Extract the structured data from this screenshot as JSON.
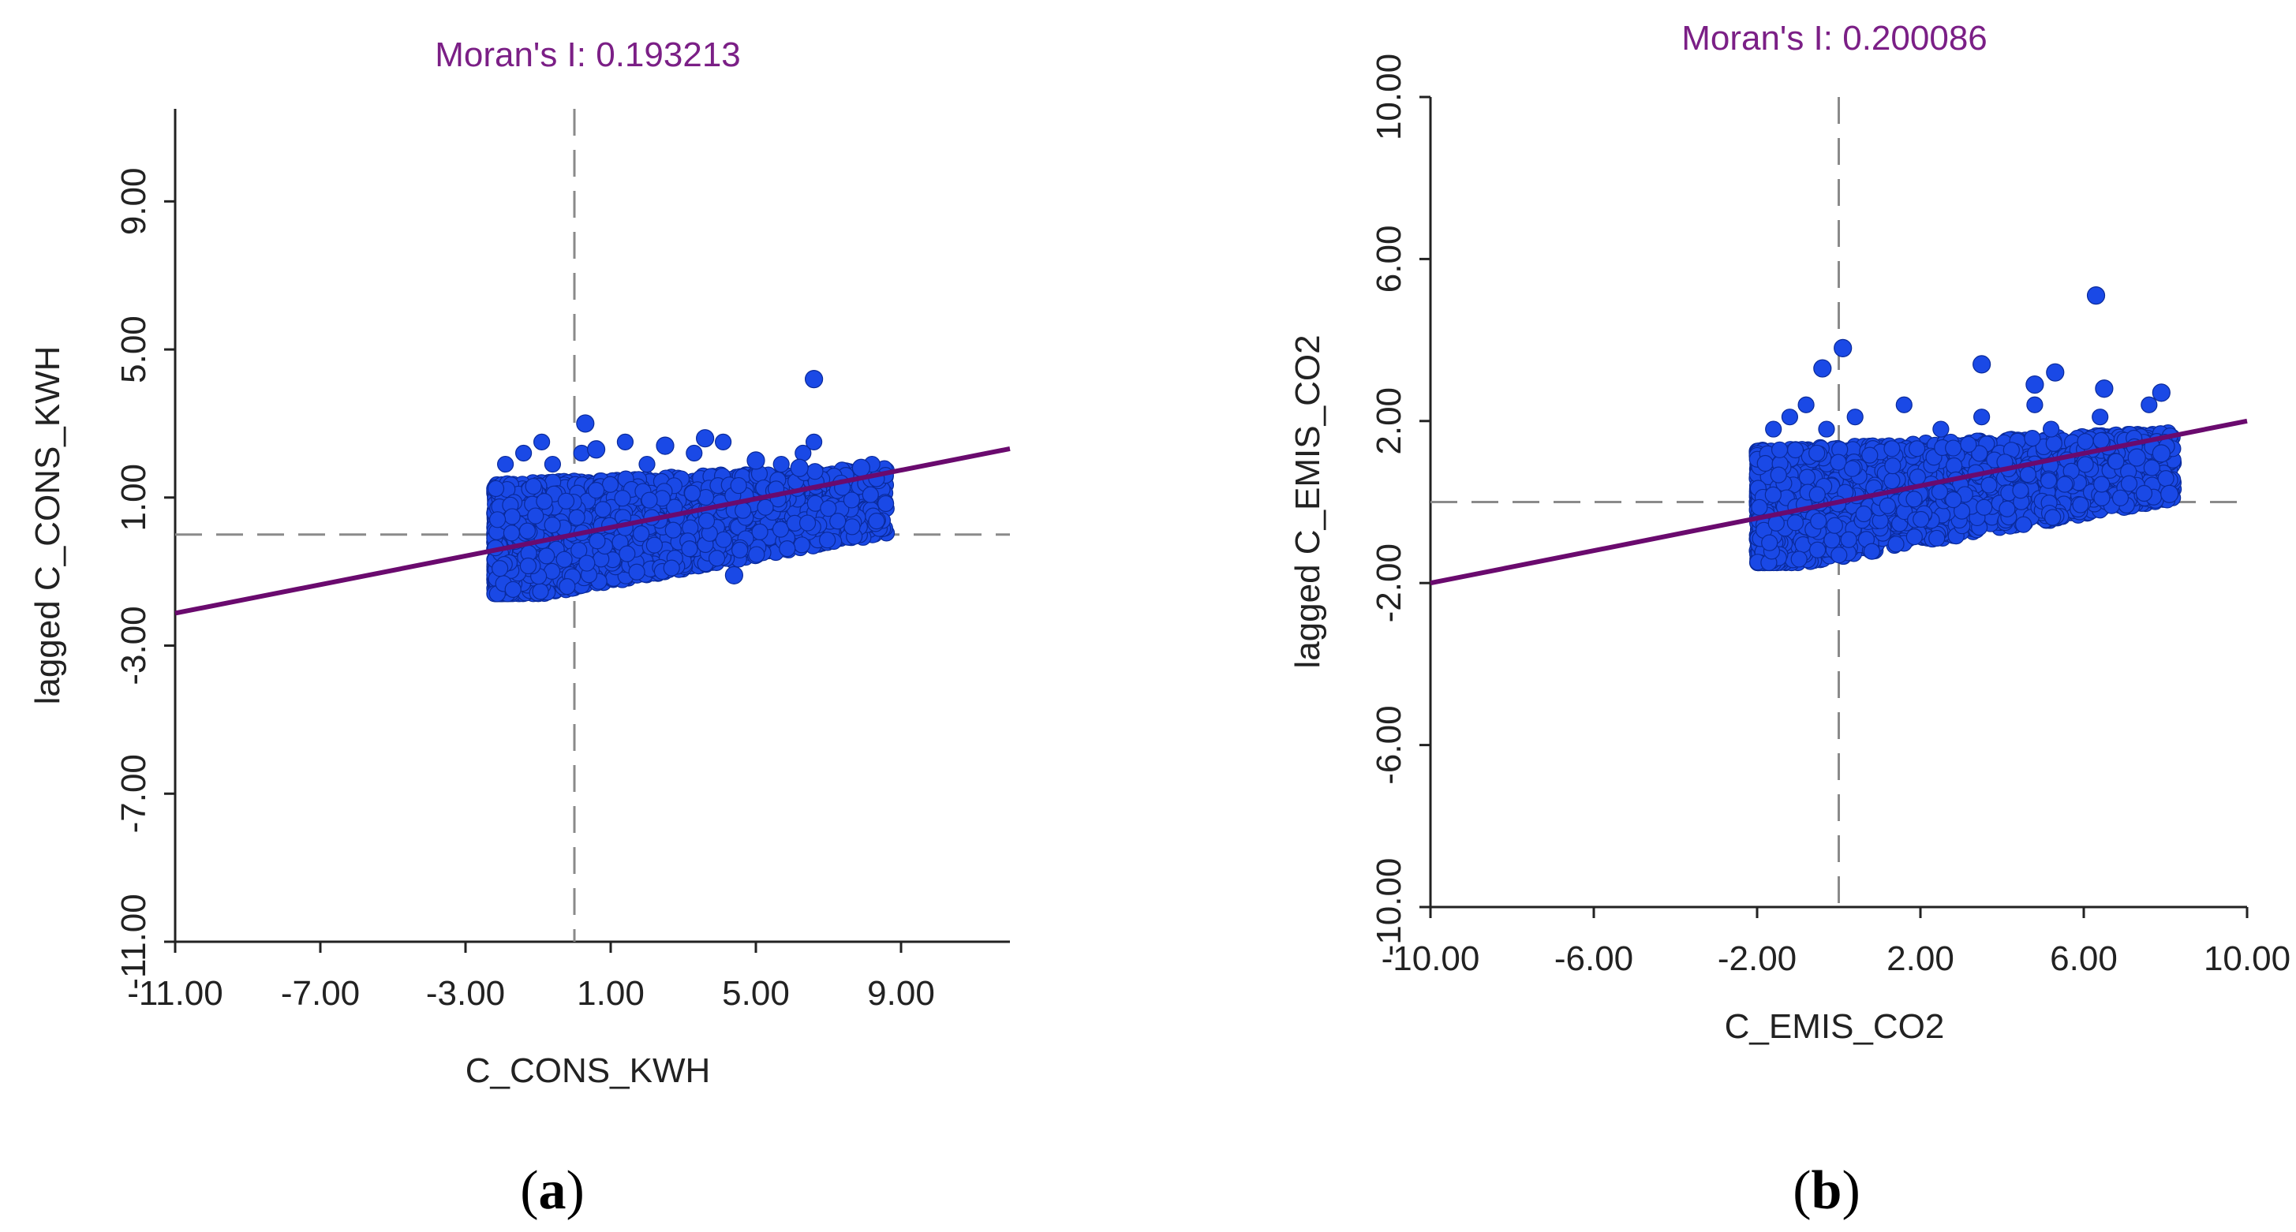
{
  "figure": {
    "panel_labels": [
      {
        "open": "(",
        "letter": "a",
        "close": ")"
      },
      {
        "open": "(",
        "letter": "b",
        "close": ")"
      }
    ]
  },
  "colors": {
    "points": "#1a49e6",
    "points_edge": "#0a2a9a",
    "regression": "#6a0a6e",
    "title": "#7b1f86",
    "axis": "#222222",
    "reference": "#8a8a8a"
  },
  "chart_data": [
    {
      "type": "scatter",
      "title": "Moran's I: 0.193213",
      "xlabel": "C_CONS_KWH",
      "ylabel": "lagged C_CONS_KWH",
      "xlim": [
        -11,
        12
      ],
      "ylim": [
        -11,
        11.5
      ],
      "xticks": [
        -11,
        -7,
        -3,
        1,
        5,
        9
      ],
      "yticks": [
        -11,
        -7,
        -3,
        1,
        5,
        9
      ],
      "xtick_labels": [
        "-11.00",
        "-7.00",
        "-3.00",
        "1.00",
        "5.00",
        "9.00"
      ],
      "ytick_labels": [
        "-11.00",
        "-7.00",
        "-3.00",
        "1.00",
        "5.00",
        "9.00"
      ],
      "reference_lines": {
        "x": 0,
        "y": 0
      },
      "regression": {
        "slope": 0.193213,
        "intercept": 0,
        "x_range": [
          -11,
          12
        ]
      },
      "point_cloud": {
        "n_points": 2600,
        "x_range": [
          -2.2,
          8.6
        ],
        "y_range": [
          -1.6,
          1.6
        ],
        "x_outliers": [
          -1.9,
          -1.4,
          -0.9,
          -0.6,
          0.2,
          1.4,
          2.0,
          3.3,
          4.1,
          5.7,
          6.3,
          6.6,
          8.2
        ],
        "highlight_points": [
          {
            "x": 6.6,
            "y": 4.2
          },
          {
            "x": 0.3,
            "y": 3.0
          },
          {
            "x": 3.6,
            "y": 2.6
          },
          {
            "x": 6.2,
            "y": 1.8
          },
          {
            "x": 7.9,
            "y": 1.8
          },
          {
            "x": 0.6,
            "y": 2.3
          },
          {
            "x": 2.5,
            "y": 2.4
          },
          {
            "x": 5.0,
            "y": 2.0
          },
          {
            "x": 4.4,
            "y": -1.1
          }
        ]
      }
    },
    {
      "type": "scatter",
      "title": "Moran's I: 0.200086",
      "xlabel": "C_EMIS_CO2",
      "ylabel": "lagged C_EMIS_CO2",
      "xlim": [
        -10,
        10
      ],
      "ylim": [
        -10,
        10
      ],
      "xticks": [
        -10,
        -6,
        -2,
        2,
        6,
        10
      ],
      "yticks": [
        -10,
        -6,
        -2,
        2,
        6,
        10
      ],
      "xtick_labels": [
        "-10.00",
        "-6.00",
        "-2.00",
        "2.00",
        "6.00",
        "10.00"
      ],
      "ytick_labels": [
        "-10.00",
        "-6.00",
        "-2.00",
        "2.00",
        "6.00",
        "10.00"
      ],
      "reference_lines": {
        "x": 0,
        "y": 0
      },
      "regression": {
        "slope": 0.200086,
        "intercept": 0,
        "x_range": [
          -10,
          10
        ]
      },
      "point_cloud": {
        "n_points": 2600,
        "x_range": [
          -2.0,
          8.2
        ],
        "y_range": [
          -1.5,
          1.5
        ],
        "x_outliers": [
          -1.6,
          -1.2,
          -0.8,
          -0.3,
          0.4,
          1.6,
          2.5,
          3.5,
          4.8,
          5.2,
          6.4,
          7.6
        ],
        "highlight_points": [
          {
            "x": 6.3,
            "y": 5.1
          },
          {
            "x": 0.1,
            "y": 3.8
          },
          {
            "x": -0.4,
            "y": 3.3
          },
          {
            "x": 3.5,
            "y": 3.4
          },
          {
            "x": 5.3,
            "y": 3.2
          },
          {
            "x": 6.5,
            "y": 2.8
          },
          {
            "x": 7.9,
            "y": 2.7
          },
          {
            "x": 4.8,
            "y": 2.9
          },
          {
            "x": 7.3,
            "y": 1.1
          },
          {
            "x": 7.9,
            "y": 1.2
          },
          {
            "x": 8.1,
            "y": 0.2
          }
        ]
      }
    }
  ]
}
